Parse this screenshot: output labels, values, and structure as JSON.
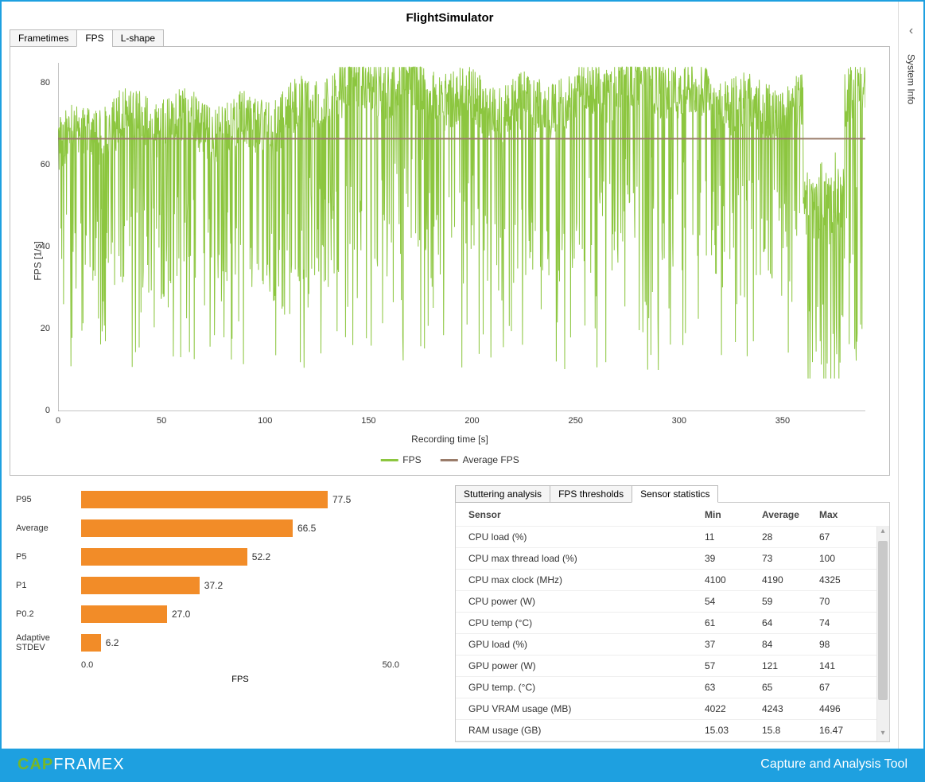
{
  "title": "FlightSimulator",
  "top_tabs": [
    "Frametimes",
    "FPS",
    "L-shape"
  ],
  "top_active_tab": 1,
  "side_panel": {
    "label": "System Info"
  },
  "fps_chart": {
    "type": "line",
    "ylabel": "FPS [1/s]",
    "xlabel": "Recording time [s]",
    "xlim": [
      0,
      390
    ],
    "ylim": [
      0,
      85
    ],
    "yticks": [
      0,
      20,
      40,
      60,
      80
    ],
    "xticks": [
      0,
      50,
      100,
      150,
      200,
      250,
      300,
      350
    ],
    "series_color": "#8cc63f",
    "avg_color": "#9a7c6a",
    "avg_value": 66.5,
    "legend": [
      {
        "label": "FPS",
        "color": "#8cc63f"
      },
      {
        "label": "Average FPS",
        "color": "#9a7c6a"
      }
    ],
    "axis_color": "#333333",
    "background": "#ffffff",
    "line_width": 1
  },
  "percentile_bars": {
    "type": "bar-horizontal",
    "color": "#f28c28",
    "xmax": 100,
    "xtick_min": "0.0",
    "xtick_max": "50.0",
    "xlabel": "FPS",
    "items": [
      {
        "label": "P95",
        "value": 77.5
      },
      {
        "label": "Average",
        "value": 66.5
      },
      {
        "label": "P5",
        "value": 52.2
      },
      {
        "label": "P1",
        "value": 37.2
      },
      {
        "label": "P0.2",
        "value": 27.0
      },
      {
        "label": "Adaptive STDEV",
        "value": 6.2
      }
    ]
  },
  "stats_tabs": [
    "Stuttering analysis",
    "FPS thresholds",
    "Sensor statistics"
  ],
  "stats_active_tab": 2,
  "stats_columns": [
    "Sensor",
    "Min",
    "Average",
    "Max"
  ],
  "stats_rows": [
    [
      "CPU load (%)",
      "11",
      "28",
      "67"
    ],
    [
      "CPU max thread load (%)",
      "39",
      "73",
      "100"
    ],
    [
      "CPU max clock (MHz)",
      "4100",
      "4190",
      "4325"
    ],
    [
      "CPU power (W)",
      "54",
      "59",
      "70"
    ],
    [
      "CPU temp (°C)",
      "61",
      "64",
      "74"
    ],
    [
      "GPU load (%)",
      "37",
      "84",
      "98"
    ],
    [
      "GPU power (W)",
      "57",
      "121",
      "141"
    ],
    [
      "GPU temp. (°C)",
      "63",
      "65",
      "67"
    ],
    [
      "GPU VRAM usage (MB)",
      "4022",
      "4243",
      "4496"
    ],
    [
      "RAM usage (GB)",
      "15.03",
      "15.8",
      "16.47"
    ]
  ],
  "footer": {
    "brand_cap": "CAP",
    "brand_rest": "FRAMEX",
    "tagline": "Capture and Analysis Tool",
    "bg_color": "#1ea0e0"
  }
}
